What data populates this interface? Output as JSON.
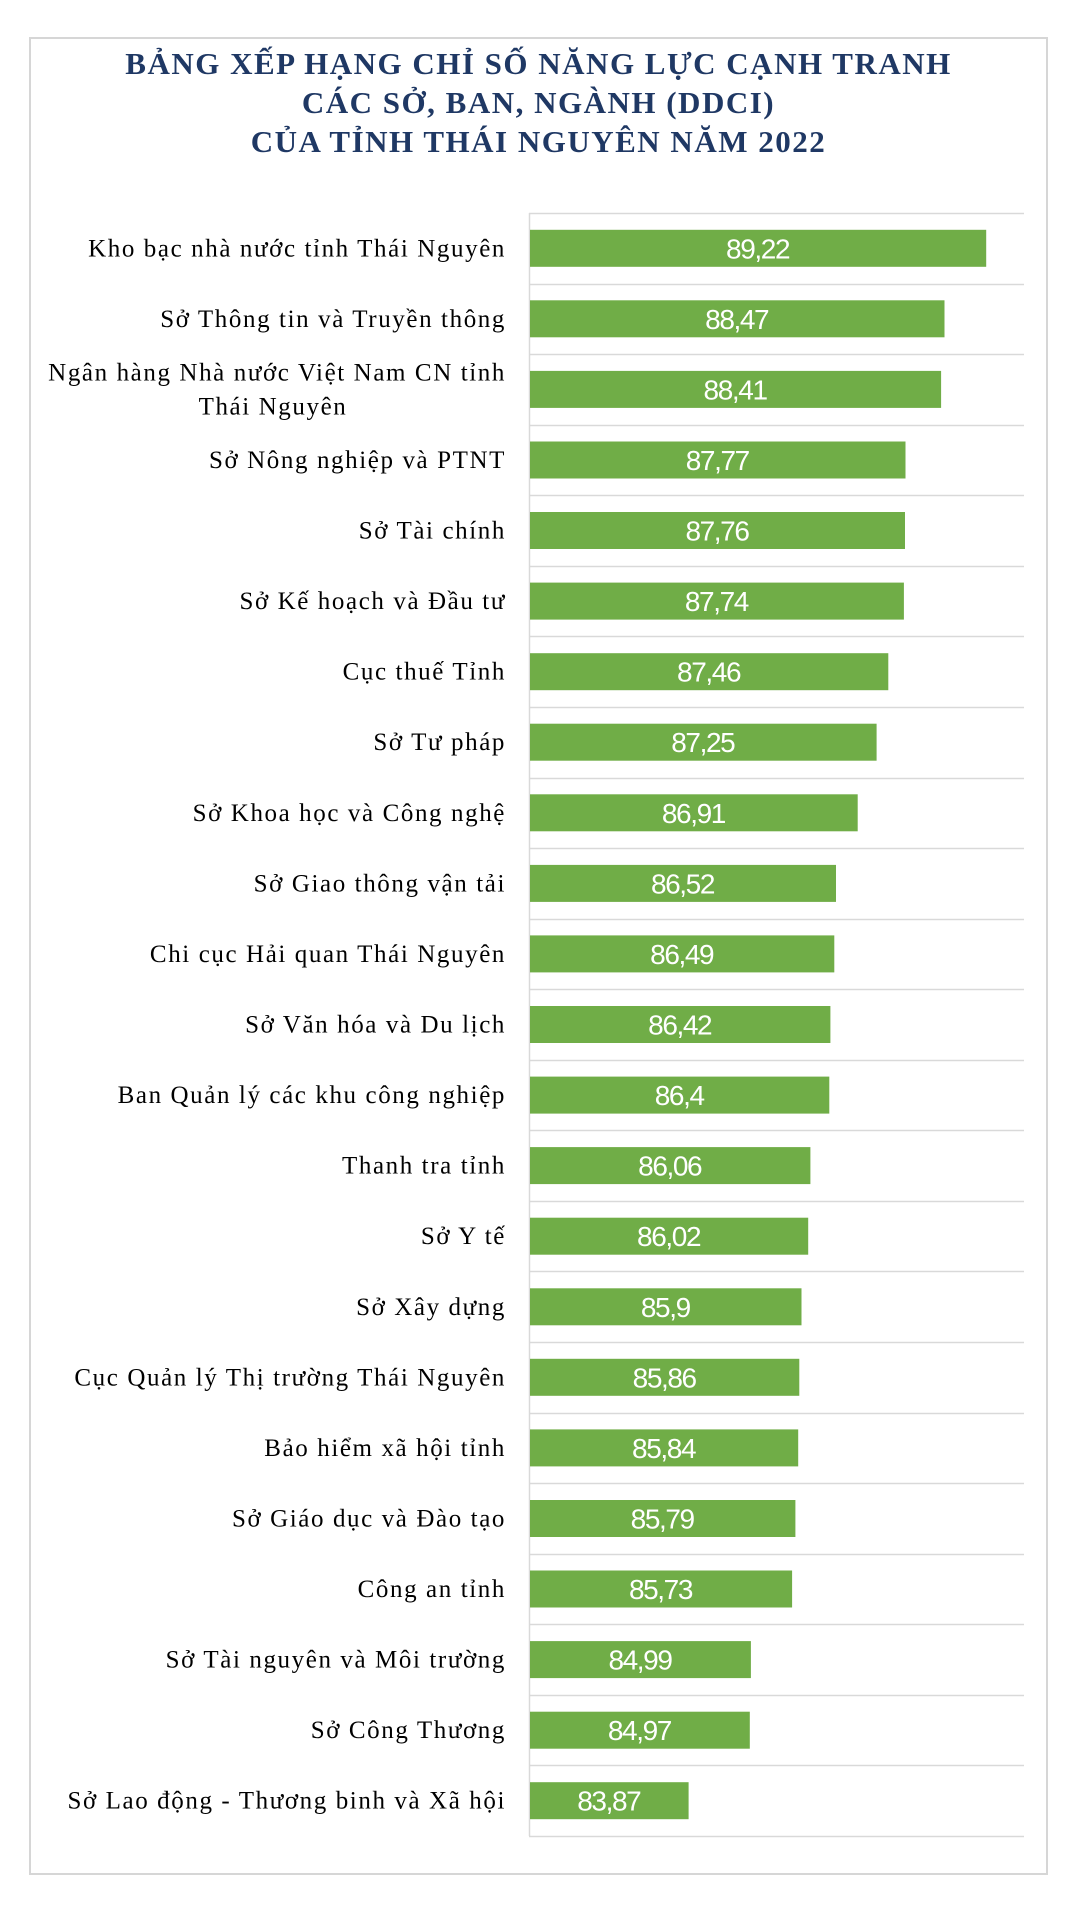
{
  "chart_data": {
    "type": "bar",
    "orientation": "horizontal",
    "title_lines": [
      "BẢNG XẾP HẠNG CHỈ SỐ NĂNG LỰC CẠNH TRANH",
      "CÁC SỞ, BAN, NGÀNH (DDCI)",
      "CỦA TỈNH THÁI NGUYÊN NĂM 2022"
    ],
    "categories": [
      [
        "Kho bạc nhà nước tỉnh Thái Nguyên"
      ],
      [
        "Sở Thông tin và Truyền thông"
      ],
      [
        "Ngân hàng Nhà nước Việt Nam CN tỉnh",
        "Thái Nguyên"
      ],
      [
        "Sở Nông nghiệp và PTNT"
      ],
      [
        "Sở Tài chính"
      ],
      [
        "Sở Kế hoạch và Đầu tư"
      ],
      [
        "Cục thuế Tỉnh"
      ],
      [
        "Sở Tư pháp"
      ],
      [
        "Sở Khoa học và Công nghệ"
      ],
      [
        "Sở Giao thông vận tải"
      ],
      [
        "Chi cục Hải quan Thái Nguyên"
      ],
      [
        "Sở Văn hóa và Du lịch"
      ],
      [
        "Ban Quản lý các khu công nghiệp"
      ],
      [
        "Thanh tra tỉnh"
      ],
      [
        "Sở Y tế"
      ],
      [
        "Sở Xây dựng"
      ],
      [
        "Cục Quản lý Thị trường Thái Nguyên"
      ],
      [
        "Bảo hiểm xã hội tỉnh"
      ],
      [
        "Sở Giáo dục và Đào tạo"
      ],
      [
        "Công an tỉnh"
      ],
      [
        "Sở Tài nguyên và Môi trường"
      ],
      [
        "Sở Công Thương"
      ],
      [
        "Sở Lao động - Thương binh và Xã hội"
      ]
    ],
    "values": [
      89.22,
      88.47,
      88.41,
      87.77,
      87.76,
      87.74,
      87.46,
      87.25,
      86.91,
      86.52,
      86.49,
      86.42,
      86.4,
      86.06,
      86.02,
      85.9,
      85.86,
      85.84,
      85.79,
      85.73,
      84.99,
      84.97,
      83.87
    ],
    "value_labels": [
      "89,22",
      "88,47",
      "88,41",
      "87,77",
      "87,76",
      "87,74",
      "87,46",
      "87,25",
      "86,91",
      "86,52",
      "86,49",
      "86,42",
      "86,4",
      "86,06",
      "86,02",
      "85,9",
      "85,86",
      "85,84",
      "85,79",
      "85,73",
      "84,99",
      "84,97",
      "83,87"
    ],
    "xlim": [
      81,
      89.9
    ],
    "grid": true,
    "legend": "none",
    "bar_color": "#70ad47",
    "grid_color": "#d9d9d9",
    "title_color": "#1f3864"
  }
}
